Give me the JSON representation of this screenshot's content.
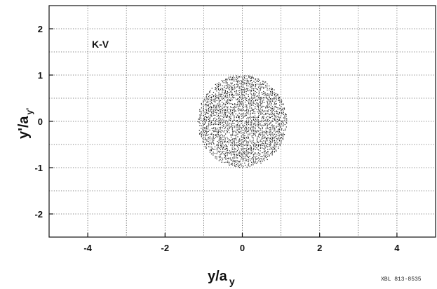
{
  "chart_data": {
    "type": "scatter",
    "title": "",
    "xlabel": "y/a",
    "xlabel_sub": "y",
    "ylabel": "y'/a",
    "ylabel_sub": "y'",
    "xlim": [
      -5,
      5
    ],
    "ylim": [
      -2.5,
      2.5
    ],
    "x_ticks": [
      -4,
      -2,
      0,
      2,
      4
    ],
    "y_ticks": [
      -2,
      -1,
      0,
      1,
      2
    ],
    "x_tick_labels": [
      "-4",
      "-2",
      "0",
      "2",
      "4"
    ],
    "y_tick_labels": [
      "-2",
      "-1",
      "0",
      "1",
      "2"
    ],
    "grid": true,
    "grid_style": "dotted",
    "annotation": "K-V",
    "distribution": {
      "shape": "uniform-disk",
      "center": [
        0,
        0
      ],
      "x_half_width": 1.15,
      "y_half_height": 1.0,
      "color": "#111111"
    },
    "footer_code": "XBL 813-8535"
  }
}
